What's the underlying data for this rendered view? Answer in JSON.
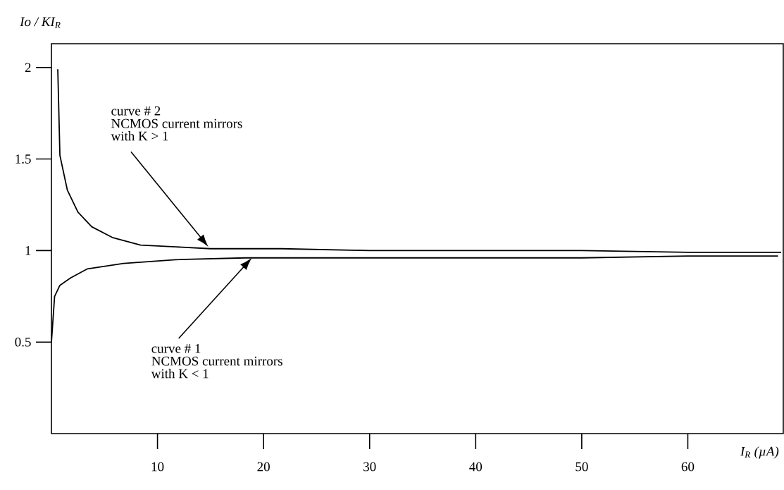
{
  "chart_data": {
    "type": "line",
    "xlabel": "I$_{R}$ (µA)",
    "ylabel": "Io / KI$_{R}$",
    "xlim": [
      0,
      69
    ],
    "ylim": [
      0,
      2.13
    ],
    "xticks": [
      10,
      20,
      30,
      40,
      50,
      60
    ],
    "yticks": [
      0.5,
      1,
      1.5,
      2
    ],
    "series": [
      {
        "color": "#000000",
        "x": [
          0.6,
          0.8,
          1.5,
          2.5,
          3.8,
          5.8,
          8.4,
          11.7,
          15,
          21.7,
          30,
          40,
          50,
          60,
          68.8
        ],
        "values": [
          1.99,
          1.52,
          1.33,
          1.21,
          1.13,
          1.07,
          1.03,
          1.02,
          1.01,
          1.01,
          1.0,
          1.0,
          1.0,
          0.99,
          0.99
        ]
      },
      {
        "color": "#000000",
        "x": [
          0,
          0.3,
          0.8,
          1.8,
          3.4,
          6.8,
          11.7,
          18.3,
          30,
          40,
          50,
          60,
          68.5
        ],
        "values": [
          0.5,
          0.75,
          0.81,
          0.85,
          0.9,
          0.93,
          0.95,
          0.96,
          0.96,
          0.96,
          0.96,
          0.97,
          0.97
        ]
      }
    ],
    "annotations": [
      "curve # 2",
      "NCMOS current mirrors",
      "with K > 1",
      "curve # 1",
      "NCMOS current mirrors",
      "with K < 1"
    ],
    "grid": false,
    "marker": "none",
    "line_style": "solid"
  }
}
